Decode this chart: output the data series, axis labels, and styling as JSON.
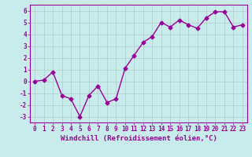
{
  "x": [
    0,
    1,
    2,
    3,
    4,
    5,
    6,
    7,
    8,
    9,
    10,
    11,
    12,
    13,
    14,
    15,
    16,
    17,
    18,
    19,
    20,
    21,
    22,
    23
  ],
  "y": [
    0,
    0.1,
    0.8,
    -1.2,
    -1.5,
    -3.0,
    -1.2,
    -0.4,
    -1.8,
    -1.5,
    1.1,
    2.2,
    3.3,
    3.8,
    5.0,
    4.6,
    5.2,
    4.8,
    4.5,
    5.4,
    5.9,
    5.9,
    4.6,
    4.8
  ],
  "line_color": "#990099",
  "marker": "D",
  "marker_size": 2.5,
  "bg_color": "#c8ecec",
  "grid_color": "#b0cccc",
  "xlabel": "Windchill (Refroidissement éolien,°C)",
  "ylim": [
    -3.5,
    6.5
  ],
  "xlim": [
    -0.5,
    23.5
  ],
  "yticks": [
    -3,
    -2,
    -1,
    0,
    1,
    2,
    3,
    4,
    5,
    6
  ],
  "xticks": [
    0,
    1,
    2,
    3,
    4,
    5,
    6,
    7,
    8,
    9,
    10,
    11,
    12,
    13,
    14,
    15,
    16,
    17,
    18,
    19,
    20,
    21,
    22,
    23
  ],
  "tick_label_fontsize": 5.5,
  "xlabel_fontsize": 6.5,
  "linewidth": 1.0
}
